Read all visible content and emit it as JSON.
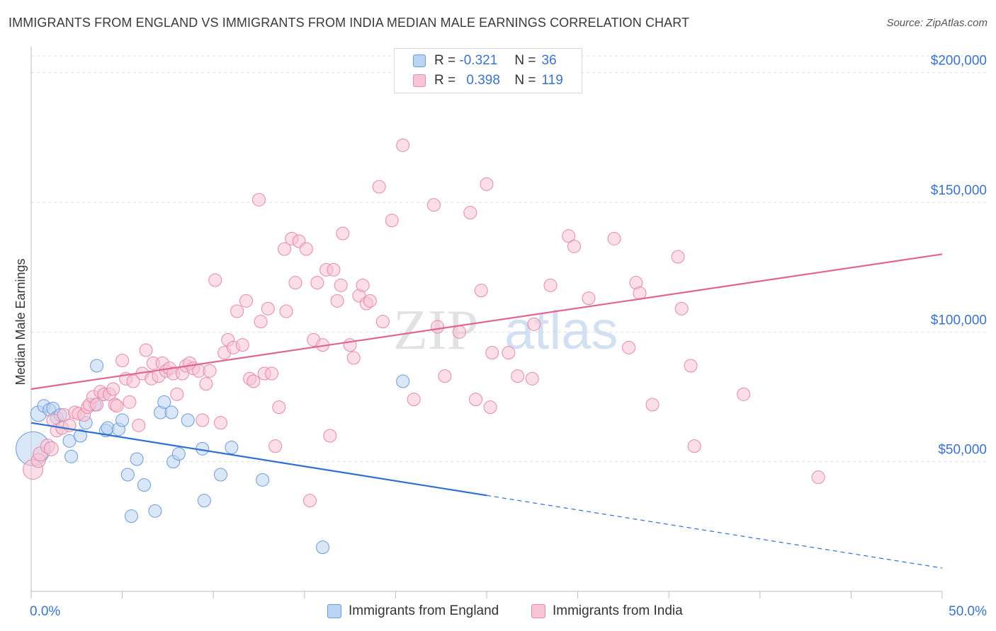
{
  "title": "IMMIGRANTS FROM ENGLAND VS IMMIGRANTS FROM INDIA MEDIAN MALE EARNINGS CORRELATION CHART",
  "source": "Source: ZipAtlas.com",
  "watermark": {
    "part1": "ZIP",
    "part2": "atlas"
  },
  "colors": {
    "england_fill": "#b9d3f3",
    "england_stroke": "#6d9bd8",
    "england_line": "#2f6fd0",
    "india_fill": "#f8c3d4",
    "india_stroke": "#e58aa9",
    "india_line": "#e06592",
    "axis_label": "#3a73c8",
    "grid": "#dddddd"
  },
  "legend": {
    "england": {
      "r_label": "R =",
      "r_value": "-0.321",
      "n_label": "N =",
      "n_value": "36"
    },
    "india": {
      "r_label": "R =",
      "r_value": "0.398",
      "n_label": "N =",
      "n_value": "119"
    }
  },
  "bottom_legend": {
    "england": "Immigrants from England",
    "india": "Immigrants from India"
  },
  "chart_data": {
    "type": "scatter",
    "title": "IMMIGRANTS FROM ENGLAND VS IMMIGRANTS FROM INDIA MEDIAN MALE EARNINGS CORRELATION CHART",
    "xlabel": "",
    "ylabel": "Median Male Earnings",
    "xlim": [
      0,
      50
    ],
    "ylim": [
      0,
      210000
    ],
    "x_tick_labels": [
      "0.0%",
      "50.0%"
    ],
    "y_ticks": [
      50000,
      100000,
      150000,
      200000
    ],
    "y_tick_labels": [
      "$50,000",
      "$100,000",
      "$150,000",
      "$200,000"
    ],
    "grid": true,
    "series": [
      {
        "name": "Immigrants from England",
        "r": -0.321,
        "n": 36,
        "trend": {
          "x0": 0,
          "y0": 65000,
          "x1": 25,
          "y1": 37000,
          "dash_x_end": 50,
          "dash_y_end": 9000
        },
        "points": [
          [
            0.1,
            55000,
            24
          ],
          [
            0.4,
            68500,
            11
          ],
          [
            0.7,
            71500,
            9
          ],
          [
            1.0,
            70000,
            9
          ],
          [
            1.2,
            70500,
            9
          ],
          [
            1.4,
            67000,
            9
          ],
          [
            1.6,
            68000,
            9
          ],
          [
            2.1,
            58000,
            9
          ],
          [
            2.2,
            52000,
            9
          ],
          [
            2.7,
            60000,
            9
          ],
          [
            3.0,
            65000,
            9
          ],
          [
            3.5,
            72000,
            9
          ],
          [
            3.6,
            87000,
            9
          ],
          [
            4.0,
            76000,
            9
          ],
          [
            4.1,
            62000,
            9
          ],
          [
            4.2,
            63000,
            9
          ],
          [
            4.8,
            62500,
            9
          ],
          [
            5.0,
            66000,
            9
          ],
          [
            5.3,
            45000,
            9
          ],
          [
            5.5,
            29000,
            9
          ],
          [
            5.8,
            51000,
            9
          ],
          [
            6.2,
            41000,
            9
          ],
          [
            6.8,
            31000,
            9
          ],
          [
            7.1,
            69000,
            9
          ],
          [
            7.3,
            73000,
            9
          ],
          [
            7.7,
            69000,
            9
          ],
          [
            7.8,
            50000,
            9
          ],
          [
            8.1,
            53000,
            9
          ],
          [
            8.6,
            66000,
            9
          ],
          [
            9.4,
            55000,
            9
          ],
          [
            9.5,
            35000,
            9
          ],
          [
            10.4,
            45000,
            9
          ],
          [
            11.0,
            55500,
            9
          ],
          [
            12.7,
            43000,
            9
          ],
          [
            16.0,
            17000,
            9
          ],
          [
            20.4,
            81000,
            9
          ]
        ]
      },
      {
        "name": "Immigrants from India",
        "r": 0.398,
        "n": 119,
        "trend": {
          "x0": 0,
          "y0": 78000,
          "x1": 50,
          "y1": 130000
        },
        "points": [
          [
            0.1,
            47000,
            14
          ],
          [
            0.4,
            50500,
            10
          ],
          [
            0.5,
            53000,
            10
          ],
          [
            0.9,
            56000,
            10
          ],
          [
            1.1,
            55000,
            10
          ],
          [
            1.2,
            66000,
            9
          ],
          [
            1.4,
            62000,
            9
          ],
          [
            1.7,
            63000,
            9
          ],
          [
            1.8,
            68000,
            9
          ],
          [
            2.1,
            64000,
            9
          ],
          [
            2.4,
            69000,
            9
          ],
          [
            2.6,
            68500,
            9
          ],
          [
            2.9,
            68000,
            9
          ],
          [
            3.1,
            71000,
            9
          ],
          [
            3.2,
            72000,
            9
          ],
          [
            3.4,
            75000,
            9
          ],
          [
            3.6,
            72000,
            9
          ],
          [
            3.8,
            77000,
            9
          ],
          [
            4.0,
            76000,
            9
          ],
          [
            4.3,
            76000,
            9
          ],
          [
            4.5,
            78000,
            9
          ],
          [
            4.6,
            72000,
            9
          ],
          [
            4.7,
            71500,
            9
          ],
          [
            5.0,
            89000,
            9
          ],
          [
            5.2,
            82000,
            9
          ],
          [
            5.4,
            73000,
            9
          ],
          [
            5.6,
            81000,
            9
          ],
          [
            5.9,
            64000,
            9
          ],
          [
            6.1,
            84000,
            9
          ],
          [
            6.3,
            93000,
            9
          ],
          [
            6.6,
            82000,
            9
          ],
          [
            6.7,
            88000,
            9
          ],
          [
            7.0,
            83000,
            9
          ],
          [
            7.2,
            88000,
            9
          ],
          [
            7.4,
            85000,
            9
          ],
          [
            7.6,
            86000,
            9
          ],
          [
            7.8,
            84000,
            9
          ],
          [
            8.0,
            76000,
            9
          ],
          [
            8.3,
            84000,
            9
          ],
          [
            8.5,
            87000,
            9
          ],
          [
            8.7,
            88000,
            9
          ],
          [
            8.9,
            86000,
            9
          ],
          [
            9.2,
            85000,
            9
          ],
          [
            9.4,
            66000,
            9
          ],
          [
            9.6,
            80000,
            9
          ],
          [
            9.8,
            85000,
            9
          ],
          [
            10.1,
            120000,
            9
          ],
          [
            10.4,
            65000,
            9
          ],
          [
            10.6,
            92000,
            9
          ],
          [
            10.8,
            97000,
            9
          ],
          [
            11.1,
            94000,
            9
          ],
          [
            11.3,
            108000,
            9
          ],
          [
            11.6,
            95000,
            9
          ],
          [
            11.8,
            112000,
            9
          ],
          [
            12.0,
            82000,
            9
          ],
          [
            12.2,
            81000,
            9
          ],
          [
            12.5,
            151000,
            9
          ],
          [
            12.6,
            104000,
            9
          ],
          [
            12.8,
            84000,
            9
          ],
          [
            13.0,
            109000,
            9
          ],
          [
            13.2,
            84000,
            9
          ],
          [
            13.4,
            56000,
            9
          ],
          [
            13.6,
            71000,
            9
          ],
          [
            13.9,
            132000,
            9
          ],
          [
            14.0,
            108000,
            9
          ],
          [
            14.3,
            136000,
            9
          ],
          [
            14.5,
            119000,
            9
          ],
          [
            14.7,
            135000,
            9
          ],
          [
            15.1,
            132000,
            9
          ],
          [
            15.3,
            35000,
            9
          ],
          [
            15.5,
            97000,
            9
          ],
          [
            15.7,
            119000,
            9
          ],
          [
            16.0,
            95000,
            9
          ],
          [
            16.2,
            124000,
            9
          ],
          [
            16.4,
            60000,
            9
          ],
          [
            16.6,
            124000,
            9
          ],
          [
            16.8,
            112000,
            9
          ],
          [
            17.0,
            118000,
            9
          ],
          [
            17.1,
            138000,
            9
          ],
          [
            17.5,
            95000,
            9
          ],
          [
            17.7,
            90000,
            9
          ],
          [
            18.0,
            114000,
            9
          ],
          [
            18.2,
            118000,
            9
          ],
          [
            18.4,
            111000,
            9
          ],
          [
            18.6,
            112000,
            9
          ],
          [
            19.1,
            156000,
            9
          ],
          [
            19.3,
            104000,
            9
          ],
          [
            19.8,
            143000,
            9
          ],
          [
            20.4,
            172000,
            9
          ],
          [
            21.0,
            74000,
            9
          ],
          [
            22.1,
            149000,
            9
          ],
          [
            22.3,
            102000,
            9
          ],
          [
            22.7,
            83000,
            9
          ],
          [
            23.5,
            100000,
            9
          ],
          [
            24.1,
            146000,
            9
          ],
          [
            24.4,
            74000,
            9
          ],
          [
            24.7,
            116000,
            9
          ],
          [
            25.0,
            157000,
            9
          ],
          [
            25.2,
            71000,
            9
          ],
          [
            25.3,
            92000,
            9
          ],
          [
            26.2,
            92000,
            9
          ],
          [
            26.7,
            83000,
            9
          ],
          [
            27.5,
            82000,
            9
          ],
          [
            27.6,
            103000,
            9
          ],
          [
            28.5,
            118000,
            9
          ],
          [
            29.5,
            137000,
            9
          ],
          [
            29.8,
            133000,
            9
          ],
          [
            30.6,
            113000,
            9
          ],
          [
            32.0,
            136000,
            9
          ],
          [
            32.8,
            94000,
            9
          ],
          [
            33.2,
            119000,
            9
          ],
          [
            33.4,
            115000,
            9
          ],
          [
            34.1,
            72000,
            9
          ],
          [
            35.5,
            129000,
            9
          ],
          [
            35.7,
            109000,
            9
          ],
          [
            36.2,
            87000,
            9
          ],
          [
            36.4,
            56000,
            9
          ],
          [
            39.1,
            76000,
            9
          ],
          [
            43.2,
            44000,
            9
          ]
        ]
      }
    ]
  }
}
